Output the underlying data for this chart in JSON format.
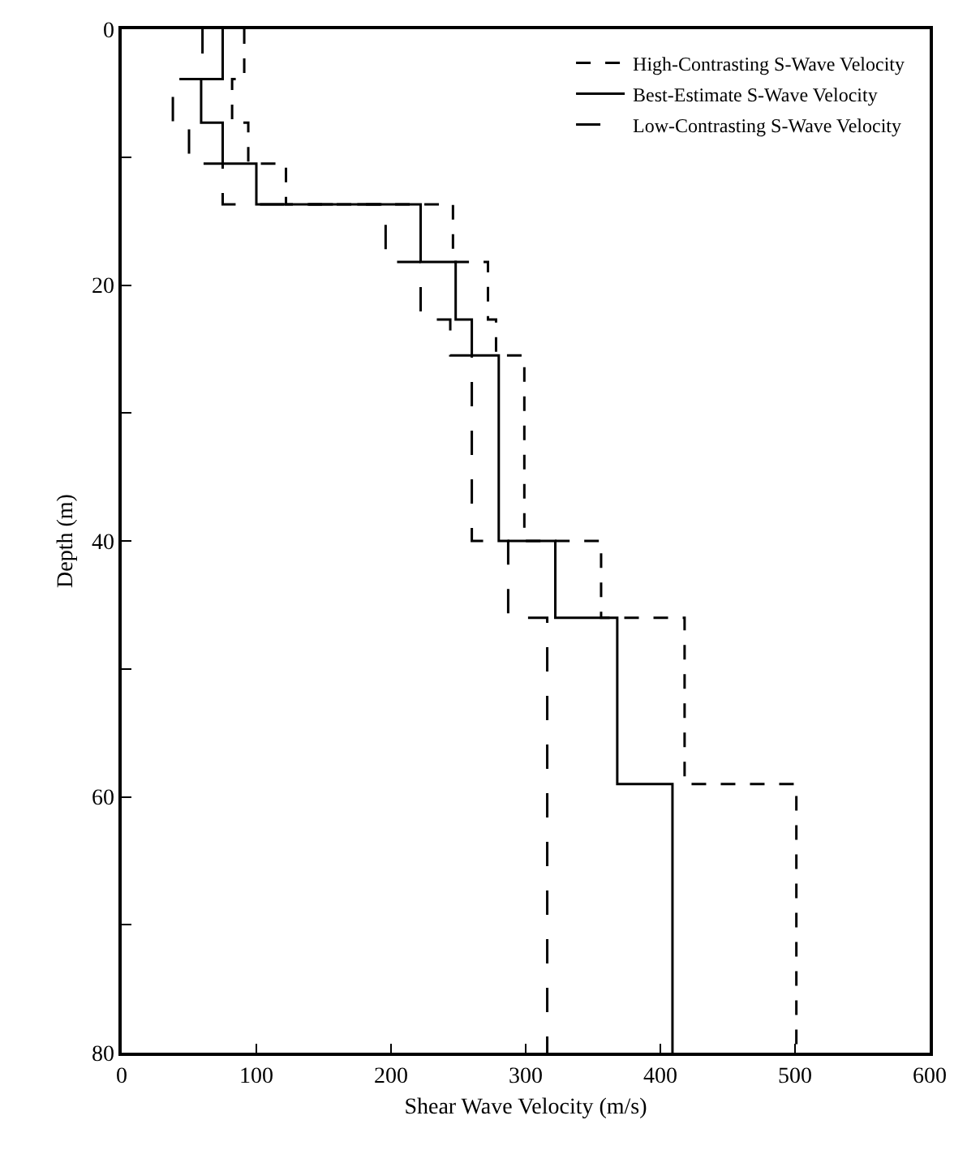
{
  "chart_data": {
    "type": "line",
    "xlabel": "Shear Wave Velocity (m/s)",
    "ylabel": "Depth (m)",
    "xlim": [
      0,
      600
    ],
    "xticks": [
      0,
      100,
      200,
      300,
      400,
      500,
      600
    ],
    "ylim": [
      80,
      0
    ],
    "yticks": [
      0,
      {
        "value": 10,
        "label": null
      },
      20,
      {
        "value": 30,
        "label": null
      },
      40,
      {
        "value": 50,
        "label": null
      },
      60,
      {
        "value": 70,
        "label": null
      },
      80
    ],
    "legend": "top right",
    "marker": "none",
    "series": [
      {
        "name": "High-Contrasting S-Wave Velocity",
        "color": "#000000",
        "line_style": "dotted",
        "x": [
          91,
          91,
          82,
          82,
          94,
          94,
          122,
          122,
          246,
          246,
          272,
          272,
          278,
          278,
          299,
          299,
          356,
          356,
          418,
          418,
          501,
          501
        ],
        "values": [
          0,
          3.9,
          3.9,
          7.3,
          7.3,
          10.5,
          10.5,
          13.7,
          13.7,
          18.2,
          18.2,
          22.7,
          22.7,
          25.5,
          25.5,
          40,
          40,
          46,
          46,
          59,
          59,
          80
        ]
      },
      {
        "name": "Best-Estimate S-Wave Velocity",
        "color": "#000000",
        "line_style": "solid",
        "x": [
          75,
          75,
          59,
          59,
          75,
          75,
          100,
          100,
          222,
          222,
          248,
          248,
          260,
          260,
          280,
          280,
          322,
          322,
          368,
          368,
          409,
          409
        ],
        "values": [
          0,
          3.9,
          3.9,
          7.3,
          7.3,
          10.5,
          10.5,
          13.7,
          13.7,
          18.2,
          18.2,
          22.7,
          22.7,
          25.5,
          25.5,
          40,
          40,
          46,
          46,
          59,
          59,
          80
        ]
      },
      {
        "name": "Low-Contrasting S-Wave Velocity",
        "color": "#000000",
        "line_style": "dashed",
        "x": [
          60,
          60,
          38,
          38,
          50,
          50,
          75,
          75,
          196,
          196,
          222,
          222,
          244,
          244,
          260,
          260,
          287,
          287,
          316,
          316
        ],
        "values": [
          0,
          3.9,
          3.9,
          7.3,
          7.3,
          10.5,
          10.5,
          13.7,
          13.7,
          18.2,
          18.2,
          22.7,
          22.7,
          25.5,
          25.5,
          40,
          40,
          46,
          46,
          80
        ]
      }
    ]
  }
}
